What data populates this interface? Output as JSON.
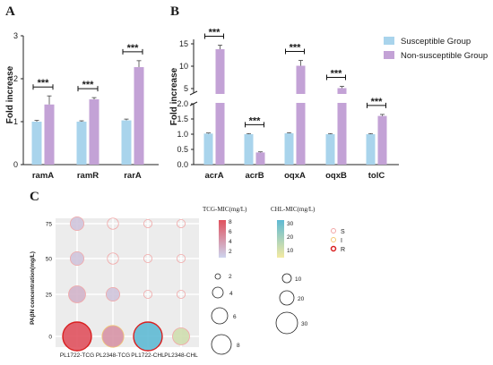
{
  "panels": {
    "A": {
      "letter": "A",
      "ylabel": "Fold increase",
      "yticks": [
        0,
        1,
        2,
        3
      ],
      "ylim": [
        0,
        3
      ],
      "categories": [
        "ramA",
        "ramR",
        "rarA"
      ],
      "significance": [
        "***",
        "***",
        "***"
      ]
    },
    "B": {
      "letter": "B",
      "ylabel": "Fold increase",
      "yticks_lower": [
        "0.0",
        "0.5",
        "1.0",
        "1.5",
        "2.0"
      ],
      "yticks_upper": [
        "5",
        "10",
        "15"
      ],
      "categories": [
        "acrA",
        "acrB",
        "oqxA",
        "oqxB",
        "tolC"
      ],
      "significance": [
        "***",
        "***",
        "***",
        "***",
        "***"
      ]
    },
    "C": {
      "letter": "C",
      "ylabel": "PAβN concentration(mg/L)",
      "yticks": [
        "0",
        "25",
        "50",
        "75"
      ],
      "categories": [
        "PL1722-TCG",
        "PL2348-TCG",
        "PL1722-CHL",
        "PL2348-CHL"
      ]
    }
  },
  "legend": {
    "items": [
      {
        "name": "Susceptible Group",
        "color": "#a9d4ec"
      },
      {
        "name": "Non-susceptible Group",
        "color": "#c3a2d6"
      }
    ]
  },
  "bubble_legend": {
    "tcg_title": "TCG-MIC(mg/L)",
    "tcg_ticks": [
      "8",
      "6",
      "4",
      "2"
    ],
    "chl_title": "CHL-MIC(mg/L)",
    "chl_ticks": [
      "30",
      "20",
      "10"
    ],
    "status": [
      {
        "label": "S",
        "color": "#f2a6a6"
      },
      {
        "label": "I",
        "color": "#f3c873"
      },
      {
        "label": "R",
        "color": "#d92020"
      }
    ],
    "tcg_sizes": [
      "2",
      "4",
      "6",
      "8"
    ],
    "chl_sizes": [
      "10",
      "20",
      "30"
    ]
  },
  "chart_data": [
    {
      "type": "bar",
      "panel": "A",
      "ylabel": "Fold increase",
      "categories": [
        "ramA",
        "ramR",
        "rarA"
      ],
      "ylim": [
        0,
        3
      ],
      "series": [
        {
          "name": "Susceptible Group",
          "values": [
            1.0,
            1.0,
            1.03
          ],
          "errors": [
            0.03,
            0.02,
            0.03
          ]
        },
        {
          "name": "Non-susceptible Group",
          "values": [
            1.4,
            1.52,
            2.27
          ],
          "errors": [
            0.2,
            0.04,
            0.15
          ]
        }
      ]
    },
    {
      "type": "bar",
      "panel": "B",
      "ylabel": "Fold increase",
      "categories": [
        "acrA",
        "acrB",
        "oqxA",
        "oqxB",
        "tolC"
      ],
      "axis_break": [
        2,
        4
      ],
      "series": [
        {
          "name": "Susceptible Group",
          "values": [
            1.02,
            1.0,
            1.03,
            1.0,
            1.0
          ],
          "errors": [
            0.02,
            0.02,
            0.02,
            0.02,
            0.02
          ]
        },
        {
          "name": "Non-susceptible Group",
          "values": [
            13.8,
            0.4,
            10.1,
            5.1,
            1.6
          ],
          "errors": [
            0.9,
            0.02,
            1.2,
            0.4,
            0.05
          ]
        }
      ]
    },
    {
      "type": "scatter",
      "panel": "C",
      "ylabel": "PAβN concentration(mg/L)",
      "categories": [
        "PL1722-TCG",
        "PL2348-TCG",
        "PL1722-CHL",
        "PL2348-CHL"
      ],
      "y": [
        0,
        25,
        50,
        75
      ],
      "points": [
        {
          "x": "PL1722-TCG",
          "y": 0,
          "mic": 8,
          "status": "R"
        },
        {
          "x": "PL2348-TCG",
          "y": 0,
          "mic": 4,
          "status": "I"
        },
        {
          "x": "PL1722-CHL",
          "y": 0,
          "mic": 32,
          "status": "R"
        },
        {
          "x": "PL2348-CHL",
          "y": 0,
          "mic": 8,
          "status": "S"
        },
        {
          "x": "PL1722-TCG",
          "y": 25,
          "mic": 2,
          "status": "S"
        },
        {
          "x": "PL2348-TCG",
          "y": 25,
          "mic": 1,
          "status": "S"
        },
        {
          "x": "PL1722-CHL",
          "y": 25,
          "mic": 0.5,
          "status": "S"
        },
        {
          "x": "PL2348-CHL",
          "y": 25,
          "mic": 0.5,
          "status": "S"
        },
        {
          "x": "PL1722-TCG",
          "y": 50,
          "mic": 1,
          "status": "S"
        },
        {
          "x": "PL2348-TCG",
          "y": 50,
          "mic": 0.5,
          "status": "S"
        },
        {
          "x": "PL1722-CHL",
          "y": 50,
          "mic": 0.5,
          "status": "S"
        },
        {
          "x": "PL2348-CHL",
          "y": 50,
          "mic": 0.5,
          "status": "S"
        },
        {
          "x": "PL1722-TCG",
          "y": 75,
          "mic": 1,
          "status": "S"
        },
        {
          "x": "PL2348-TCG",
          "y": 75,
          "mic": 0.5,
          "status": "S"
        },
        {
          "x": "PL1722-CHL",
          "y": 75,
          "mic": 0.5,
          "status": "S"
        },
        {
          "x": "PL2348-CHL",
          "y": 75,
          "mic": 0.5,
          "status": "S"
        }
      ]
    }
  ]
}
